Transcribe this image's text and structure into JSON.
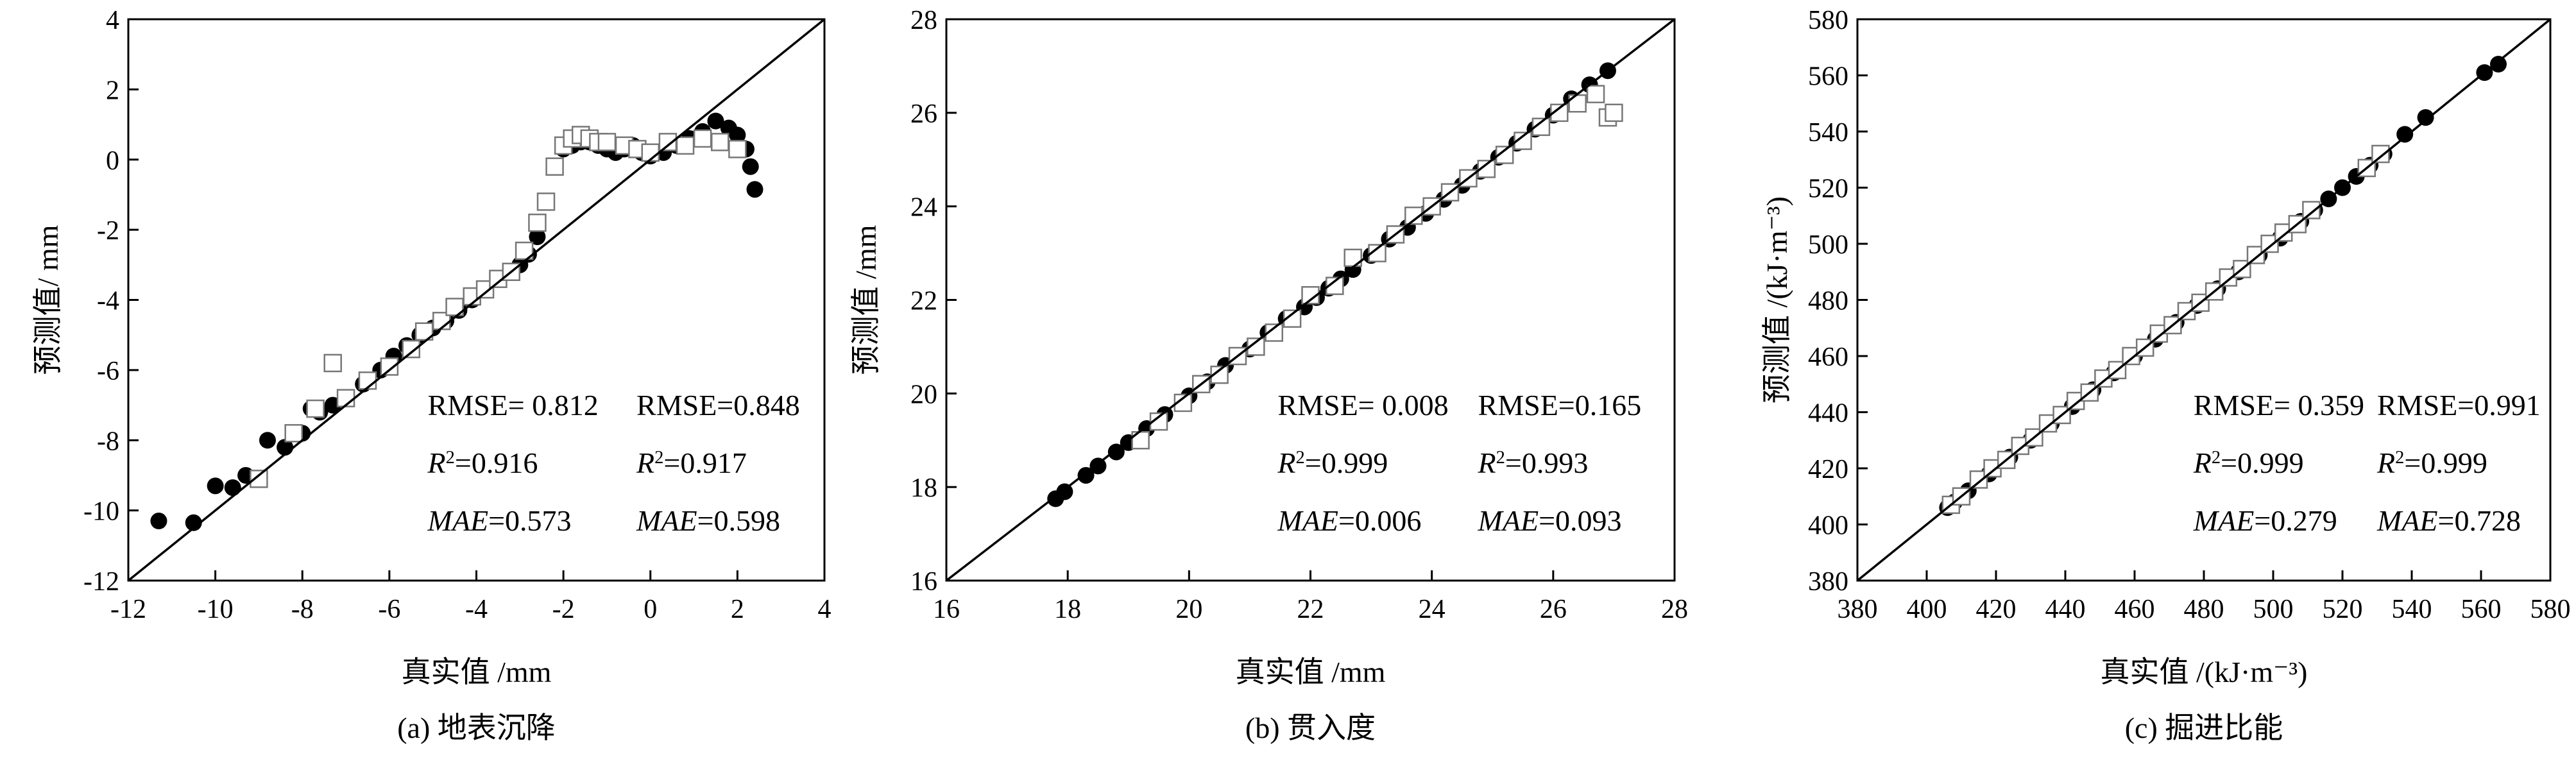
{
  "chart_data": [
    {
      "type": "scatter",
      "title": "",
      "caption": "(a) 地表沉降",
      "xlabel": "真实值 /mm",
      "ylabel": "预测值/ mm",
      "xlim": [
        -12,
        4
      ],
      "ylim": [
        -12,
        4
      ],
      "xticks": [
        -12,
        -10,
        -8,
        -6,
        -4,
        -2,
        0,
        2,
        4
      ],
      "yticks": [
        -12,
        -10,
        -8,
        -6,
        -4,
        -2,
        0,
        2,
        4
      ],
      "xtick_labels": [
        "-12",
        "-10",
        "-8",
        "-6",
        "-4",
        "-2",
        "0",
        "2",
        "4"
      ],
      "ytick_labels": [
        "-12",
        "-10",
        "-8",
        "-6",
        "-4",
        "-2",
        "0",
        "2",
        "4"
      ],
      "grid": false,
      "reference_line": [
        [
          -12,
          -12
        ],
        [
          4,
          4
        ]
      ],
      "series": [
        {
          "marker": "filled-circle",
          "x": [
            -11.3,
            -10.5,
            -10.0,
            -9.6,
            -9.3,
            -8.8,
            -8.4,
            -8.0,
            -7.8,
            -7.6,
            -7.3,
            -7.0,
            -6.6,
            -6.2,
            -5.9,
            -5.6,
            -5.3,
            -5.0,
            -4.7,
            -4.4,
            -4.1,
            -3.8,
            -3.5,
            -3.2,
            -3.0,
            -2.8,
            -2.6,
            -2.4,
            -2.2,
            -2.0,
            -1.8,
            -1.6,
            -1.4,
            -1.2,
            -1.0,
            -0.8,
            -0.6,
            -0.4,
            -0.2,
            0.0,
            0.3,
            0.6,
            0.9,
            1.2,
            1.5,
            1.8,
            2.0,
            2.2,
            2.3,
            2.4
          ],
          "y": [
            -10.3,
            -10.35,
            -9.3,
            -9.35,
            -9.0,
            -8.0,
            -8.2,
            -7.8,
            -7.1,
            -7.2,
            -7.0,
            -6.8,
            -6.4,
            -6.0,
            -5.6,
            -5.3,
            -5.0,
            -4.8,
            -4.6,
            -4.3,
            -4.0,
            -3.7,
            -3.4,
            -3.2,
            -3.0,
            -2.7,
            -2.2,
            -1.2,
            -0.2,
            0.3,
            0.4,
            0.5,
            0.5,
            0.4,
            0.3,
            0.2,
            0.3,
            0.4,
            0.2,
            0.1,
            0.2,
            0.4,
            0.6,
            0.8,
            1.1,
            0.9,
            0.7,
            0.3,
            -0.2,
            -0.85
          ]
        },
        {
          "marker": "open-square",
          "x": [
            -9.0,
            -8.2,
            -7.7,
            -7.3,
            -7.0,
            -6.5,
            -6.0,
            -5.5,
            -5.2,
            -4.8,
            -4.5,
            -4.1,
            -3.8,
            -3.5,
            -3.2,
            -2.9,
            -2.6,
            -2.4,
            -2.2,
            -2.0,
            -1.8,
            -1.6,
            -1.4,
            -1.2,
            -1.0,
            -0.6,
            -0.3,
            0.0,
            0.4,
            0.8,
            1.2,
            1.6,
            2.0
          ],
          "y": [
            -9.1,
            -7.8,
            -7.1,
            -5.8,
            -6.8,
            -6.3,
            -5.9,
            -5.4,
            -4.9,
            -4.6,
            -4.2,
            -3.9,
            -3.7,
            -3.4,
            -3.2,
            -2.6,
            -1.8,
            -1.2,
            -0.2,
            0.4,
            0.6,
            0.7,
            0.6,
            0.5,
            0.5,
            0.4,
            0.3,
            0.2,
            0.5,
            0.4,
            0.6,
            0.5,
            0.3
          ]
        }
      ],
      "metrics": [
        {
          "rmse": "RMSE= 0.812",
          "r2": "=0.916",
          "mae": "=0.573"
        },
        {
          "rmse": "RMSE=0.848",
          "r2": "=0.917",
          "mae": "=0.598"
        }
      ]
    },
    {
      "type": "scatter",
      "title": "",
      "caption": "(b) 贯入度",
      "xlabel": "真实值 /mm",
      "ylabel": "预测值 /mm",
      "xlim": [
        16,
        28
      ],
      "ylim": [
        16,
        28
      ],
      "xticks": [
        16,
        18,
        20,
        22,
        24,
        26,
        28
      ],
      "yticks": [
        16,
        18,
        20,
        22,
        24,
        26,
        28
      ],
      "xtick_labels": [
        "16",
        "18",
        "20",
        "22",
        "24",
        "26",
        "28"
      ],
      "ytick_labels": [
        "16",
        "18",
        "20",
        "22",
        "24",
        "26",
        "28"
      ],
      "grid": false,
      "reference_line": [
        [
          16,
          16
        ],
        [
          28,
          28
        ]
      ],
      "series": [
        {
          "marker": "filled-circle",
          "x": [
            17.8,
            17.95,
            18.3,
            18.5,
            18.8,
            19.0,
            19.3,
            19.6,
            20.0,
            20.3,
            20.6,
            21.0,
            21.3,
            21.6,
            21.9,
            22.1,
            22.3,
            22.5,
            22.7,
            23.0,
            23.3,
            23.6,
            23.9,
            24.2,
            24.5,
            24.8,
            25.1,
            25.4,
            25.7,
            26.0,
            26.3,
            26.6,
            26.9
          ],
          "y": [
            17.75,
            17.9,
            18.25,
            18.45,
            18.75,
            18.95,
            19.25,
            19.55,
            19.95,
            20.25,
            20.6,
            20.95,
            21.3,
            21.6,
            21.85,
            22.05,
            22.25,
            22.45,
            22.65,
            22.95,
            23.3,
            23.55,
            23.85,
            24.15,
            24.45,
            24.75,
            25.05,
            25.35,
            25.65,
            25.95,
            26.3,
            26.6,
            26.9
          ]
        },
        {
          "marker": "open-square",
          "x": [
            19.2,
            19.5,
            19.9,
            20.2,
            20.5,
            20.8,
            21.1,
            21.4,
            21.7,
            22.0,
            22.4,
            22.7,
            23.1,
            23.4,
            23.7,
            24.0,
            24.3,
            24.6,
            24.9,
            25.2,
            25.5,
            25.8,
            26.1,
            26.4,
            26.7,
            26.9,
            27.0
          ],
          "y": [
            19.0,
            19.4,
            19.8,
            20.2,
            20.4,
            20.8,
            21.0,
            21.3,
            21.6,
            22.1,
            22.3,
            22.9,
            23.0,
            23.4,
            23.8,
            24.0,
            24.3,
            24.6,
            24.8,
            25.1,
            25.4,
            25.7,
            26.0,
            26.2,
            26.4,
            25.9,
            26.0
          ]
        }
      ],
      "metrics": [
        {
          "rmse": "RMSE= 0.008",
          "r2": "=0.999",
          "mae": "=0.006"
        },
        {
          "rmse": "RMSE=0.165",
          "r2": "=0.993",
          "mae": "=0.093"
        }
      ]
    },
    {
      "type": "scatter",
      "title": "",
      "caption": "(c) 掘进比能",
      "xlabel": "真实值 /(kJ·m⁻³)",
      "ylabel": "预测值 /(kJ·m⁻³)",
      "xlim": [
        380,
        580
      ],
      "ylim": [
        380,
        580
      ],
      "xticks": [
        380,
        400,
        420,
        440,
        460,
        480,
        500,
        520,
        540,
        560,
        580
      ],
      "yticks": [
        380,
        400,
        420,
        440,
        460,
        480,
        500,
        520,
        540,
        560,
        580
      ],
      "xtick_labels": [
        "380",
        "400",
        "420",
        "440",
        "460",
        "480",
        "500",
        "520",
        "540",
        "560",
        "580"
      ],
      "ytick_labels": [
        "380",
        "400",
        "420",
        "440",
        "460",
        "480",
        "500",
        "520",
        "540",
        "560",
        "580"
      ],
      "grid": false,
      "reference_line": [
        [
          380,
          380
        ],
        [
          580,
          580
        ]
      ],
      "series": [
        {
          "marker": "filled-circle",
          "x": [
            406,
            408,
            412,
            418,
            424,
            430,
            436,
            442,
            448,
            454,
            460,
            466,
            472,
            478,
            484,
            490,
            496,
            502,
            508,
            512,
            516,
            520,
            524,
            528,
            532,
            538,
            544,
            561,
            565
          ],
          "y": [
            406,
            408,
            412,
            418,
            424,
            430,
            436,
            442,
            448,
            454,
            460,
            466,
            472,
            478,
            484,
            490,
            496,
            502,
            508,
            512,
            516,
            520,
            524,
            528,
            532,
            539,
            545,
            561,
            564
          ]
        },
        {
          "marker": "open-square",
          "x": [
            407,
            410,
            415,
            419,
            423,
            427,
            431,
            435,
            439,
            443,
            447,
            451,
            455,
            459,
            463,
            467,
            471,
            475,
            479,
            483,
            487,
            491,
            495,
            499,
            503,
            507,
            511,
            527,
            531
          ],
          "y": [
            407,
            410,
            416,
            420,
            423,
            428,
            431,
            436,
            439,
            444,
            447,
            452,
            455,
            460,
            463,
            468,
            471,
            476,
            479,
            483,
            488,
            491,
            496,
            500,
            504,
            507,
            512,
            527,
            532
          ]
        }
      ],
      "metrics": [
        {
          "rmse": "RMSE= 0.359",
          "r2": "=0.999",
          "mae": "=0.279"
        },
        {
          "rmse": "RMSE=0.991",
          "r2": "=0.999",
          "mae": "=0.728"
        }
      ]
    }
  ]
}
